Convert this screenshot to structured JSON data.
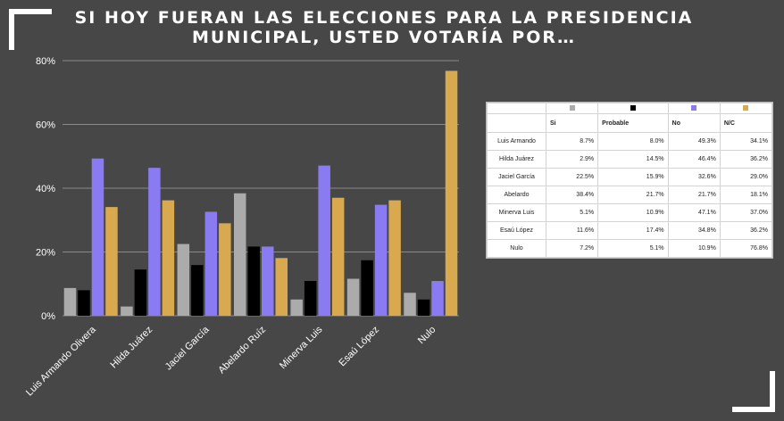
{
  "title": "SI HOY FUERAN LAS ELECCIONES PARA LA PRESIDENCIA\nMUNICIPAL, USTED VOTARÍA POR…",
  "colors": {
    "background": "#474747",
    "si": "#ababab",
    "probable": "#000000",
    "no": "#8b7bf2",
    "nc": "#d8a94e"
  },
  "chart_data": {
    "type": "bar",
    "categories": [
      "Luis Armando Olivera",
      "Hilda Juárez",
      "Jaciel García",
      "Abelardo Ruíz",
      "Minerva Luis",
      "Esaú López",
      "Nulo"
    ],
    "series": [
      {
        "name": "Si",
        "color": "#ababab",
        "values": [
          8.7,
          2.9,
          22.5,
          38.4,
          5.1,
          11.6,
          7.2
        ]
      },
      {
        "name": "Probable",
        "color": "#000000",
        "values": [
          8.0,
          14.5,
          15.9,
          21.7,
          10.9,
          17.4,
          5.1
        ]
      },
      {
        "name": "No",
        "color": "#8b7bf2",
        "values": [
          49.3,
          46.4,
          32.6,
          21.7,
          47.1,
          34.8,
          10.9
        ]
      },
      {
        "name": "N/C",
        "color": "#d8a94e",
        "values": [
          34.1,
          36.2,
          29.0,
          18.1,
          37.0,
          36.2,
          76.8
        ]
      }
    ],
    "ylim": [
      0,
      80
    ],
    "yticks": [
      "0%",
      "20%",
      "40%",
      "60%",
      "80%"
    ],
    "grid": true
  },
  "table": {
    "headers": [
      "Si",
      "Probable",
      "No",
      "N/C"
    ],
    "rows": [
      {
        "name": "Luis Armando",
        "values": [
          "8.7%",
          "8.0%",
          "49.3%",
          "34.1%"
        ]
      },
      {
        "name": "Hilda Juárez",
        "values": [
          "2.9%",
          "14.5%",
          "46.4%",
          "36.2%"
        ]
      },
      {
        "name": "Jaciel García",
        "values": [
          "22.5%",
          "15.9%",
          "32.6%",
          "29.0%"
        ]
      },
      {
        "name": "Abelardo",
        "values": [
          "38.4%",
          "21.7%",
          "21.7%",
          "18.1%"
        ]
      },
      {
        "name": "Minerva Luis",
        "values": [
          "5.1%",
          "10.9%",
          "47.1%",
          "37.0%"
        ]
      },
      {
        "name": "Esaú López",
        "values": [
          "11.6%",
          "17.4%",
          "34.8%",
          "36.2%"
        ]
      },
      {
        "name": "Nulo",
        "values": [
          "7.2%",
          "5.1%",
          "10.9%",
          "76.8%"
        ]
      }
    ]
  }
}
